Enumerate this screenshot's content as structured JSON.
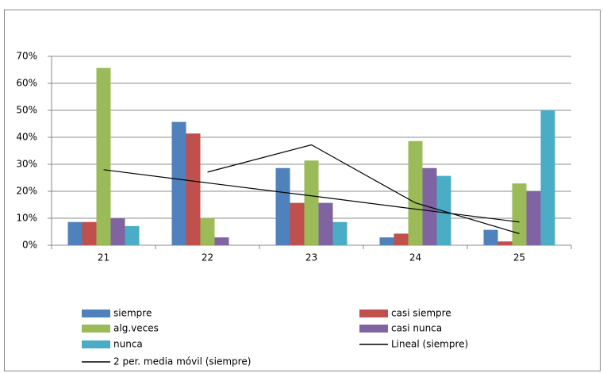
{
  "chart_data": {
    "type": "bar",
    "categories": [
      "21",
      "22",
      "23",
      "24",
      "25"
    ],
    "series": [
      {
        "name": "siempre",
        "color": "#4f81bd",
        "values": [
          8.6,
          45.7,
          28.6,
          2.9,
          5.7
        ]
      },
      {
        "name": "casi siempre",
        "color": "#c0504d",
        "values": [
          8.6,
          41.4,
          15.7,
          4.3,
          1.4
        ]
      },
      {
        "name": "alg.veces",
        "color": "#9bbb59",
        "values": [
          65.7,
          10,
          31.4,
          38.6,
          22.9
        ]
      },
      {
        "name": "casi nunca",
        "color": "#8064a2",
        "values": [
          10,
          2.9,
          15.7,
          28.6,
          20
        ]
      },
      {
        "name": "nunca",
        "color": "#4bacc6",
        "values": [
          7.1,
          0,
          8.6,
          25.7,
          50
        ]
      },
      {
        "name": "Lineal (siempre)",
        "type": "line",
        "color": "#000000",
        "values": [
          28.0,
          23.1,
          18.3,
          13.4,
          8.6
        ]
      },
      {
        "name": "2 per. media móvil (siempre)",
        "type": "line",
        "color": "#000000",
        "values": [
          null,
          27.1,
          37.2,
          15.7,
          4.3
        ]
      }
    ],
    "ylim": [
      0,
      70
    ],
    "yticks": [
      {
        "value": 0,
        "label": "0%"
      },
      {
        "value": 10,
        "label": "10%"
      },
      {
        "value": 20,
        "label": "20%"
      },
      {
        "value": 30,
        "label": "30%"
      },
      {
        "value": 40,
        "label": "40%"
      },
      {
        "value": 50,
        "label": "50%"
      },
      {
        "value": 60,
        "label": "60%"
      },
      {
        "value": 70,
        "label": "70%"
      }
    ],
    "grid": true
  }
}
